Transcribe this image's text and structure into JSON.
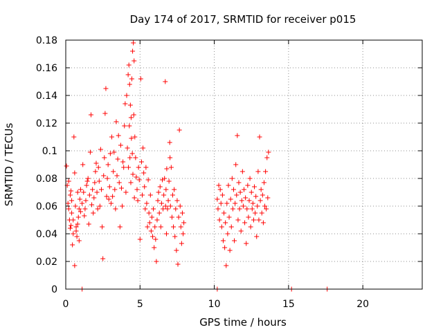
{
  "chart_data": {
    "type": "scatter",
    "title": "Day 174 of 2017, SRMTID for receiver p015",
    "xlabel": "GPS time / hours",
    "ylabel": "SRMTID / TECUs",
    "xlim": [
      0,
      24
    ],
    "ylim": [
      0,
      0.18
    ],
    "xticks": [
      0,
      5,
      10,
      15,
      20
    ],
    "xtick_labels": [
      "0",
      "5",
      "10",
      "15",
      "20"
    ],
    "yticks": [
      0,
      0.02,
      0.04,
      0.06,
      0.08,
      0.1,
      0.12,
      0.14,
      0.16,
      0.18
    ],
    "ytick_labels": [
      "0",
      "0.02",
      "0.04",
      "0.06",
      "0.08",
      "0.1",
      "0.12",
      "0.14",
      "0.16",
      "0.18"
    ],
    "grid": true,
    "marker": "+",
    "color": "#ff0000",
    "series": [
      {
        "name": "SRMTID",
        "points": [
          [
            0.05,
            0.089
          ],
          [
            0.1,
            0.075
          ],
          [
            0.15,
            0.062
          ],
          [
            0.2,
            0.058
          ],
          [
            0.25,
            0.05
          ],
          [
            0.3,
            0.068
          ],
          [
            0.35,
            0.046
          ],
          [
            0.4,
            0.055
          ],
          [
            0.45,
            0.032
          ],
          [
            0.5,
            0.04
          ],
          [
            0.55,
            0.11
          ],
          [
            0.6,
            0.017
          ],
          [
            0.65,
            0.06
          ],
          [
            0.7,
            0.045
          ],
          [
            0.75,
            0.038
          ],
          [
            0.8,
            0.07
          ],
          [
            0.85,
            0.052
          ],
          [
            0.9,
            0.035
          ],
          [
            0.95,
            0.065
          ],
          [
            1.0,
            0.072
          ],
          [
            0.2,
            0.078
          ],
          [
            0.3,
            0.044
          ],
          [
            0.4,
            0.064
          ],
          [
            0.5,
            0.05
          ],
          [
            0.6,
            0.084
          ],
          [
            0.7,
            0.042
          ],
          [
            0.8,
            0.047
          ],
          [
            0.9,
            0.058
          ],
          [
            1.0,
            0.056
          ],
          [
            0.35,
            0.071
          ],
          [
            1.1,
            0.062
          ],
          [
            1.2,
            0.07
          ],
          [
            1.3,
            0.058
          ],
          [
            1.4,
            0.075
          ],
          [
            1.5,
            0.08
          ],
          [
            1.6,
            0.068
          ],
          [
            1.7,
            0.126
          ],
          [
            1.8,
            0.072
          ],
          [
            1.9,
            0.066
          ],
          [
            2.0,
            0.085
          ],
          [
            1.15,
            0.09
          ],
          [
            1.25,
            0.053
          ],
          [
            1.35,
            0.064
          ],
          [
            1.45,
            0.078
          ],
          [
            1.55,
            0.047
          ],
          [
            1.65,
            0.099
          ],
          [
            1.75,
            0.061
          ],
          [
            1.85,
            0.055
          ],
          [
            1.95,
            0.077
          ],
          [
            2.05,
            0.091
          ],
          [
            2.1,
            0.07
          ],
          [
            2.2,
            0.088
          ],
          [
            2.3,
            0.06
          ],
          [
            2.4,
            0.072
          ],
          [
            2.5,
            0.022
          ],
          [
            2.6,
            0.095
          ],
          [
            2.7,
            0.145
          ],
          [
            2.8,
            0.08
          ],
          [
            2.9,
            0.065
          ],
          [
            3.0,
            0.098
          ],
          [
            2.15,
            0.058
          ],
          [
            2.25,
            0.078
          ],
          [
            2.35,
            0.101
          ],
          [
            2.45,
            0.045
          ],
          [
            2.55,
            0.082
          ],
          [
            2.65,
            0.127
          ],
          [
            2.75,
            0.067
          ],
          [
            2.85,
            0.09
          ],
          [
            2.95,
            0.074
          ],
          [
            3.05,
            0.062
          ],
          [
            3.1,
            0.11
          ],
          [
            3.2,
            0.085
          ],
          [
            3.3,
            0.072
          ],
          [
            3.4,
            0.121
          ],
          [
            3.5,
            0.094
          ],
          [
            3.6,
            0.077
          ],
          [
            3.7,
            0.104
          ],
          [
            3.8,
            0.06
          ],
          [
            3.9,
            0.088
          ],
          [
            4.0,
            0.134
          ],
          [
            3.15,
            0.067
          ],
          [
            3.25,
            0.099
          ],
          [
            3.35,
            0.058
          ],
          [
            3.45,
            0.082
          ],
          [
            3.55,
            0.111
          ],
          [
            3.65,
            0.045
          ],
          [
            3.75,
            0.073
          ],
          [
            3.85,
            0.092
          ],
          [
            3.95,
            0.118
          ],
          [
            4.05,
            0.07
          ],
          [
            4.1,
            0.14
          ],
          [
            4.2,
            0.155
          ],
          [
            4.25,
            0.162
          ],
          [
            4.3,
            0.148
          ],
          [
            4.35,
            0.133
          ],
          [
            4.4,
            0.124
          ],
          [
            4.45,
            0.152
          ],
          [
            4.5,
            0.172
          ],
          [
            4.55,
            0.178
          ],
          [
            4.6,
            0.165
          ],
          [
            4.15,
            0.102
          ],
          [
            4.22,
            0.088
          ],
          [
            4.28,
            0.118
          ],
          [
            4.32,
            0.095
          ],
          [
            4.38,
            0.077
          ],
          [
            4.42,
            0.109
          ],
          [
            4.48,
            0.098
          ],
          [
            4.52,
            0.083
          ],
          [
            4.58,
            0.126
          ],
          [
            4.62,
            0.066
          ],
          [
            4.65,
            0.11
          ],
          [
            4.7,
            0.095
          ],
          [
            4.75,
            0.081
          ],
          [
            4.8,
            0.072
          ],
          [
            4.85,
            0.064
          ],
          [
            4.9,
            0.088
          ],
          [
            4.95,
            0.079
          ],
          [
            5.0,
            0.036
          ],
          [
            5.05,
            0.152
          ],
          [
            5.1,
            0.092
          ],
          [
            5.15,
            0.068
          ],
          [
            5.2,
            0.102
          ],
          [
            5.25,
            0.084
          ],
          [
            5.3,
            0.074
          ],
          [
            5.35,
            0.058
          ],
          [
            5.4,
            0.088
          ],
          [
            5.45,
            0.062
          ],
          [
            5.5,
            0.045
          ],
          [
            5.55,
            0.079
          ],
          [
            5.6,
            0.055
          ],
          [
            5.65,
            0.048
          ],
          [
            5.7,
            0.068
          ],
          [
            5.75,
            0.042
          ],
          [
            5.8,
            0.052
          ],
          [
            5.85,
            0.038
          ],
          [
            5.9,
            0.058
          ],
          [
            5.95,
            0.03
          ],
          [
            6.0,
            0.045
          ],
          [
            6.05,
            0.036
          ],
          [
            6.1,
            0.02
          ],
          [
            6.15,
            0.05
          ],
          [
            6.2,
            0.064
          ],
          [
            6.25,
            0.07
          ],
          [
            6.3,
            0.055
          ],
          [
            6.35,
            0.074
          ],
          [
            6.4,
            0.045
          ],
          [
            6.45,
            0.062
          ],
          [
            6.5,
            0.079
          ],
          [
            6.55,
            0.058
          ],
          [
            6.6,
            0.068
          ],
          [
            6.65,
            0.08
          ],
          [
            6.7,
            0.15
          ],
          [
            6.75,
            0.072
          ],
          [
            6.8,
            0.087
          ],
          [
            6.85,
            0.058
          ],
          [
            6.9,
            0.064
          ],
          [
            6.95,
            0.078
          ],
          [
            7.0,
            0.106
          ],
          [
            7.05,
            0.06
          ],
          [
            7.1,
            0.088
          ],
          [
            7.15,
            0.052
          ],
          [
            7.2,
            0.068
          ],
          [
            7.25,
            0.045
          ],
          [
            7.3,
            0.072
          ],
          [
            7.35,
            0.038
          ],
          [
            7.4,
            0.058
          ],
          [
            7.45,
            0.028
          ],
          [
            7.5,
            0.064
          ],
          [
            7.55,
            0.018
          ],
          [
            7.6,
            0.052
          ],
          [
            7.65,
            0.115
          ],
          [
            7.7,
            0.06
          ],
          [
            7.75,
            0.045
          ],
          [
            7.8,
            0.033
          ],
          [
            7.85,
            0.055
          ],
          [
            7.9,
            0.04
          ],
          [
            7.95,
            0.048
          ],
          [
            6.72,
            0.06
          ],
          [
            6.78,
            0.04
          ],
          [
            7.02,
            0.095
          ],
          [
            10.2,
            0.065
          ],
          [
            10.25,
            0.058
          ],
          [
            10.3,
            0.075
          ],
          [
            10.35,
            0.05
          ],
          [
            10.4,
            0.072
          ],
          [
            10.45,
            0.062
          ],
          [
            10.5,
            0.045
          ],
          [
            10.55,
            0.068
          ],
          [
            10.6,
            0.035
          ],
          [
            10.65,
            0.055
          ],
          [
            10.7,
            0.03
          ],
          [
            10.75,
            0.048
          ],
          [
            10.8,
            0.017
          ],
          [
            10.85,
            0.062
          ],
          [
            10.9,
            0.04
          ],
          [
            10.95,
            0.075
          ],
          [
            11.0,
            0.052
          ],
          [
            11.05,
            0.028
          ],
          [
            11.1,
            0.065
          ],
          [
            11.15,
            0.045
          ],
          [
            11.2,
            0.08
          ],
          [
            11.25,
            0.058
          ],
          [
            11.3,
            0.072
          ],
          [
            11.35,
            0.035
          ],
          [
            11.4,
            0.062
          ],
          [
            11.45,
            0.09
          ],
          [
            11.5,
            0.068
          ],
          [
            11.55,
            0.111
          ],
          [
            11.6,
            0.05
          ],
          [
            11.65,
            0.077
          ],
          [
            11.7,
            0.058
          ],
          [
            11.75,
            0.07
          ],
          [
            11.8,
            0.042
          ],
          [
            11.85,
            0.064
          ],
          [
            11.9,
            0.085
          ],
          [
            11.95,
            0.06
          ],
          [
            12.0,
            0.072
          ],
          [
            12.05,
            0.048
          ],
          [
            12.1,
            0.066
          ],
          [
            12.15,
            0.033
          ],
          [
            12.2,
            0.058
          ],
          [
            12.25,
            0.075
          ],
          [
            12.3,
            0.052
          ],
          [
            12.35,
            0.064
          ],
          [
            12.4,
            0.08
          ],
          [
            12.45,
            0.045
          ],
          [
            12.5,
            0.07
          ],
          [
            12.55,
            0.058
          ],
          [
            12.6,
            0.062
          ],
          [
            12.65,
            0.05
          ],
          [
            12.7,
            0.074
          ],
          [
            12.75,
            0.055
          ],
          [
            12.8,
            0.067
          ],
          [
            12.85,
            0.038
          ],
          [
            12.9,
            0.06
          ],
          [
            12.95,
            0.085
          ],
          [
            13.0,
            0.05
          ],
          [
            13.05,
            0.11
          ],
          [
            13.1,
            0.064
          ],
          [
            13.15,
            0.072
          ],
          [
            13.2,
            0.055
          ],
          [
            13.25,
            0.068
          ],
          [
            13.3,
            0.048
          ],
          [
            13.35,
            0.077
          ],
          [
            13.4,
            0.06
          ],
          [
            13.45,
            0.085
          ],
          [
            13.5,
            0.058
          ],
          [
            13.55,
            0.095
          ],
          [
            13.6,
            0.066
          ],
          [
            13.65,
            0.099
          ],
          [
            1.1,
            0
          ],
          [
            10.2,
            0
          ],
          [
            15.2,
            0
          ],
          [
            17.6,
            0
          ]
        ]
      }
    ]
  }
}
